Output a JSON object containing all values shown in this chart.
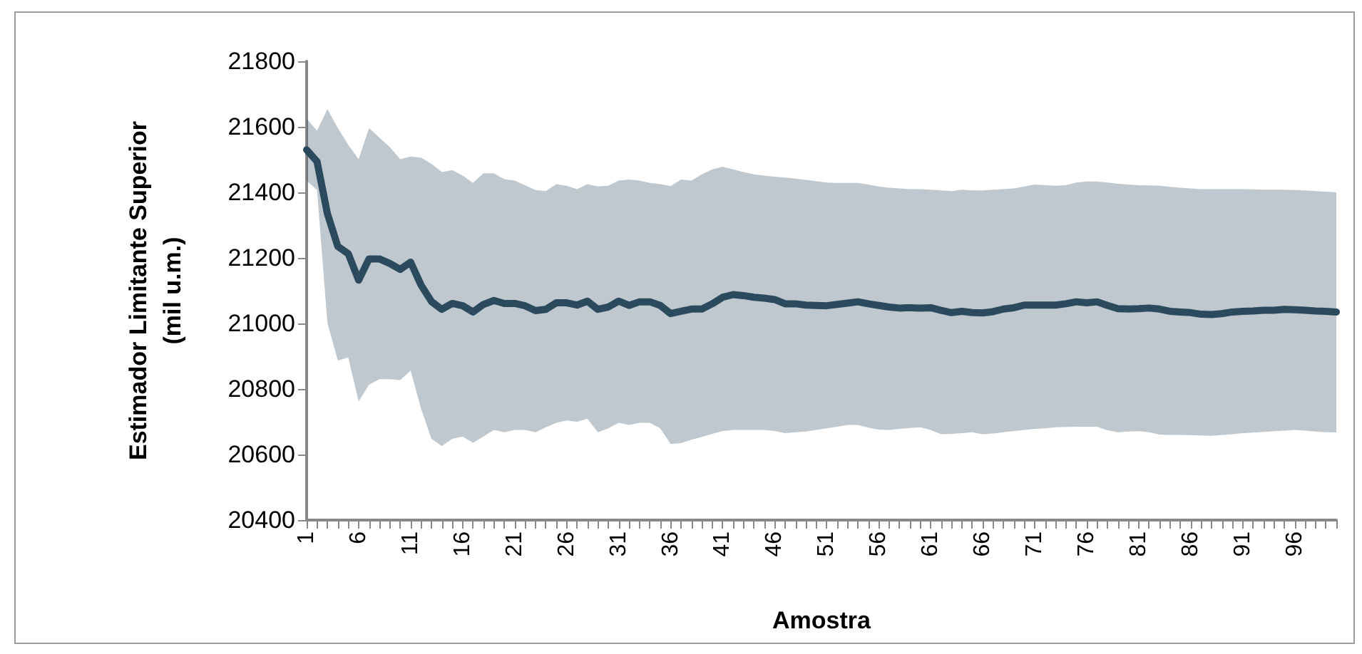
{
  "chart_data": {
    "type": "line",
    "xlabel": "Amostra",
    "ylabel": "Estimador Limitante Superior\n(mil u.m.)",
    "categories": [
      "1",
      null,
      null,
      null,
      null,
      "6",
      null,
      null,
      null,
      null,
      "11",
      null,
      null,
      null,
      null,
      "16",
      null,
      null,
      null,
      null,
      "21",
      null,
      null,
      null,
      null,
      "26",
      null,
      null,
      null,
      null,
      "31",
      null,
      null,
      null,
      null,
      "36",
      null,
      null,
      null,
      null,
      "41",
      null,
      null,
      null,
      null,
      "46",
      null,
      null,
      null,
      null,
      "51",
      null,
      null,
      null,
      null,
      "56",
      null,
      null,
      null,
      null,
      "61",
      null,
      null,
      null,
      null,
      "66",
      null,
      null,
      null,
      null,
      "71",
      null,
      null,
      null,
      null,
      "76",
      null,
      null,
      null,
      null,
      "81",
      null,
      null,
      null,
      null,
      "86",
      null,
      null,
      null,
      null,
      "91",
      null,
      null,
      null,
      null,
      "96",
      null,
      null,
      null,
      null
    ],
    "series": [
      {
        "color": "#2c4a5e",
        "values": [
          21530,
          21494,
          21335,
          21235,
          21213,
          21132,
          21197,
          21197,
          21183,
          21165,
          21187,
          21117,
          21067,
          21043,
          21061,
          21054,
          21035,
          21058,
          21070,
          21061,
          21061,
          21054,
          21039,
          21043,
          21063,
          21063,
          21056,
          21068,
          21043,
          21050,
          21068,
          21055,
          21066,
          21066,
          21055,
          21030,
          21037,
          21044,
          21044,
          21060,
          21080,
          21088,
          21085,
          21080,
          21077,
          21073,
          21060,
          21060,
          21056,
          21055,
          21054,
          21058,
          21062,
          21066,
          21060,
          21055,
          21050,
          21047,
          21048,
          21047,
          21048,
          21040,
          21033,
          21037,
          21033,
          21032,
          21036,
          21044,
          21048,
          21056,
          21056,
          21056,
          21056,
          21060,
          21066,
          21063,
          21066,
          21055,
          21045,
          21044,
          21045,
          21047,
          21044,
          21037,
          21035,
          21033,
          21028,
          21027,
          21030,
          21035,
          21037,
          21038,
          21040,
          21040,
          21043,
          21042,
          21040,
          21038,
          21037,
          21035
        ],
        "upper": [
          21625,
          21588,
          21654,
          21596,
          21545,
          21501,
          21596,
          21567,
          21538,
          21501,
          21509,
          21506,
          21487,
          21462,
          21468,
          21451,
          21429,
          21458,
          21458,
          21440,
          21436,
          21422,
          21407,
          21404,
          21425,
          21420,
          21410,
          21425,
          21418,
          21420,
          21436,
          21439,
          21436,
          21429,
          21425,
          21419,
          21439,
          21436,
          21455,
          21470,
          21478,
          21470,
          21462,
          21455,
          21451,
          21448,
          21445,
          21442,
          21438,
          21434,
          21430,
          21429,
          21429,
          21429,
          21424,
          21418,
          21414,
          21412,
          21410,
          21410,
          21408,
          21406,
          21404,
          21408,
          21406,
          21406,
          21408,
          21410,
          21412,
          21418,
          21424,
          21422,
          21420,
          21422,
          21430,
          21433,
          21433,
          21430,
          21426,
          21424,
          21422,
          21421,
          21420,
          21417,
          21414,
          21412,
          21410,
          21410,
          21410,
          21410,
          21410,
          21409,
          21408,
          21408,
          21408,
          21407,
          21406,
          21404,
          21402,
          21400
        ],
        "lower": [
          21436,
          21407,
          21001,
          20887,
          20896,
          20762,
          20813,
          20830,
          20830,
          20827,
          20856,
          20740,
          20648,
          20626,
          20648,
          20655,
          20636,
          20655,
          20675,
          20668,
          20675,
          20675,
          20668,
          20683,
          20697,
          20704,
          20700,
          20709,
          20668,
          20680,
          20697,
          20690,
          20697,
          20697,
          20680,
          20632,
          20635,
          20645,
          20654,
          20663,
          20672,
          20675,
          20675,
          20675,
          20675,
          20672,
          20665,
          20668,
          20670,
          20675,
          20680,
          20685,
          20690,
          20690,
          20682,
          20676,
          20675,
          20678,
          20681,
          20683,
          20675,
          20662,
          20663,
          20665,
          20668,
          20662,
          20664,
          20668,
          20672,
          20675,
          20678,
          20680,
          20683,
          20684,
          20685,
          20685,
          20685,
          20674,
          20668,
          20670,
          20671,
          20668,
          20661,
          20660,
          20660,
          20659,
          20658,
          20657,
          20660,
          20662,
          20665,
          20667,
          20669,
          20671,
          20673,
          20675,
          20673,
          20670,
          20668,
          20668
        ]
      }
    ],
    "ylim": [
      20400,
      21800
    ],
    "yticks": [
      20400,
      20600,
      20800,
      21000,
      21200,
      21400,
      21600,
      21800
    ],
    "grid": false,
    "marker": "none",
    "line_style": "solid"
  }
}
